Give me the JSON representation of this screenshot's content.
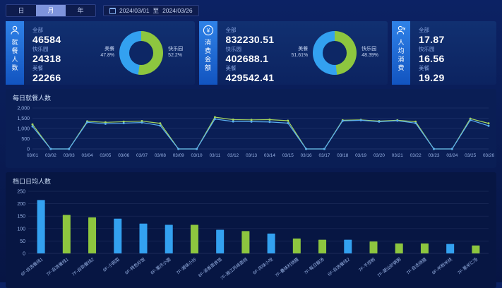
{
  "colors": {
    "blue": "#33a1f0",
    "green": "#8dc63f",
    "line_blue": "#5aaef0",
    "line_green": "#a6d75e",
    "axis": "#9ab4e6",
    "grid": "rgba(154,180,230,0.14)"
  },
  "topbar": {
    "tabs": [
      {
        "label": "日",
        "active": false
      },
      {
        "label": "月",
        "active": true
      },
      {
        "label": "年",
        "active": false
      }
    ],
    "date_range": {
      "start": "2024/03/01",
      "separator": "至",
      "end": "2024/03/26"
    }
  },
  "icons": {
    "yuan_glyph": "¥"
  },
  "cards": [
    {
      "title": "就餐人数",
      "rows": [
        {
          "label": "全部",
          "value": "46584"
        },
        {
          "label": "快乐园",
          "value": "24318"
        },
        {
          "label": "美餐",
          "value": "22266"
        }
      ],
      "donut": {
        "left_label": "美餐",
        "left_pct": "47.8%",
        "right_label": "快乐园",
        "right_pct": "52.2%",
        "green_pct": 52.2
      }
    },
    {
      "title": "消费金额",
      "rows": [
        {
          "label": "全部",
          "value": "832230.51"
        },
        {
          "label": "快乐园",
          "value": "402688.1"
        },
        {
          "label": "美餐",
          "value": "429542.41"
        }
      ],
      "donut": {
        "left_label": "美餐",
        "left_pct": "51.61%",
        "right_label": "快乐园",
        "right_pct": "48.39%",
        "green_pct": 48.39
      }
    },
    {
      "title": "人均消费",
      "rows": [
        {
          "label": "全部",
          "value": "17.87"
        },
        {
          "label": "快乐园",
          "value": "16.56"
        },
        {
          "label": "美餐",
          "value": "19.29"
        }
      ],
      "donut": null
    }
  ],
  "chart_data": [
    {
      "type": "line",
      "title": "每日就餐人数",
      "x": [
        "03/01",
        "03/02",
        "03/03",
        "03/04",
        "03/05",
        "03/06",
        "03/07",
        "03/08",
        "03/09",
        "03/10",
        "03/11",
        "03/12",
        "03/13",
        "03/14",
        "03/15",
        "03/16",
        "03/17",
        "03/18",
        "03/19",
        "03/20",
        "03/21",
        "03/22",
        "03/23",
        "03/24",
        "03/25",
        "03/26"
      ],
      "series": [
        {
          "name": "快乐园",
          "color_key": "line_green",
          "values": [
            1200,
            0,
            0,
            1350,
            1300,
            1330,
            1360,
            1250,
            0,
            0,
            1550,
            1430,
            1420,
            1430,
            1380,
            0,
            0,
            1400,
            1420,
            1360,
            1400,
            1330,
            0,
            0,
            1480,
            1250
          ]
        },
        {
          "name": "美餐",
          "color_key": "line_blue",
          "values": [
            1100,
            0,
            0,
            1300,
            1230,
            1260,
            1290,
            1140,
            0,
            0,
            1460,
            1340,
            1330,
            1320,
            1260,
            0,
            0,
            1370,
            1400,
            1330,
            1380,
            1260,
            0,
            0,
            1410,
            1130
          ]
        }
      ],
      "ylim": [
        0,
        2000
      ],
      "yticks": [
        0,
        500,
        1000,
        1500,
        2000
      ],
      "grid": true,
      "legend": "none"
    },
    {
      "type": "bar",
      "title": "档口日均人数",
      "categories": [
        "6F-自选餐线1",
        "7F-自选餐线1",
        "7F-自助餐线2",
        "6F-小碗菜",
        "6F-特色炒饭",
        "6F-重庆小面",
        "7F-湘味小炒",
        "6F-渝香面食馆",
        "7F-湘江风味面档",
        "6F-风味小吃",
        "7F-叠味村烧腊",
        "7F-每日靓汤",
        "6F-自选餐线2",
        "7F-干捞粉",
        "7F-潮汕砂锅粥",
        "7F-自选烧腊",
        "6F-米粉米线",
        "7F-薏米仁汤"
      ],
      "values": [
        215,
        155,
        145,
        140,
        120,
        115,
        115,
        95,
        90,
        80,
        60,
        55,
        55,
        48,
        40,
        40,
        38,
        32
      ],
      "bar_colors": [
        "blue",
        "green",
        "green",
        "blue",
        "blue",
        "blue",
        "green",
        "blue",
        "green",
        "blue",
        "green",
        "green",
        "blue",
        "green",
        "green",
        "green",
        "blue",
        "green"
      ],
      "ylim": [
        0,
        250
      ],
      "yticks": [
        0,
        50,
        100,
        150,
        200,
        250
      ],
      "grid": true,
      "legend": "none"
    }
  ]
}
